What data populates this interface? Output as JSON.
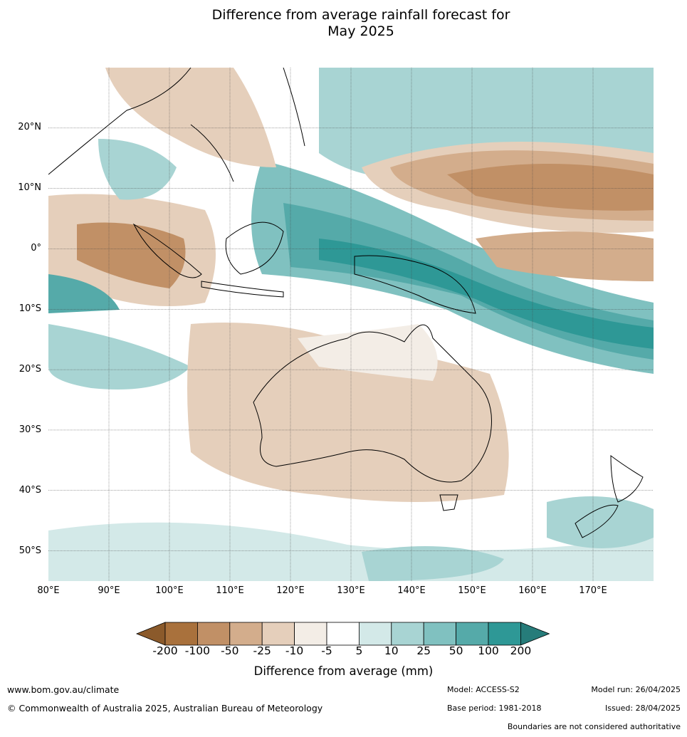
{
  "title": {
    "line1": "Difference from average rainfall forecast for",
    "line2": "May 2025"
  },
  "map": {
    "lat_labels": [
      "20°N",
      "10°N",
      "0°",
      "10°S",
      "20°S",
      "30°S",
      "40°S",
      "50°S"
    ],
    "lon_labels": [
      "80°E",
      "90°E",
      "100°E",
      "110°E",
      "120°E",
      "130°E",
      "140°E",
      "150°E",
      "160°E",
      "170°E"
    ],
    "lon_range": [
      80,
      180
    ],
    "lat_range": [
      -55,
      30
    ]
  },
  "legend": {
    "title": "Difference from average (mm)",
    "tick_labels": [
      "-200",
      "-100",
      "-50",
      "-25",
      "-10",
      "-5",
      "5",
      "10",
      "25",
      "50",
      "100",
      "200"
    ],
    "colors": [
      "#8b5a2b",
      "#a9713c",
      "#c19066",
      "#d3ad8c",
      "#e5cfbb",
      "#f3ede6",
      "#ffffff",
      "#d3e9e8",
      "#a8d4d3",
      "#80c1c0",
      "#55aaa9",
      "#2e9896",
      "#267c7a"
    ]
  },
  "footer": {
    "url": "www.bom.gov.au/climate",
    "copyright": "© Commonwealth of Australia 2025, Australian Bureau of Meteorology",
    "model": "Model: ACCESS-S2",
    "base_period": "Base period: 1981-2018",
    "model_run": "Model run: 26/04/2025",
    "issued": "Issued: 28/04/2025",
    "disclaimer": "Boundaries are not considered authoritative"
  }
}
